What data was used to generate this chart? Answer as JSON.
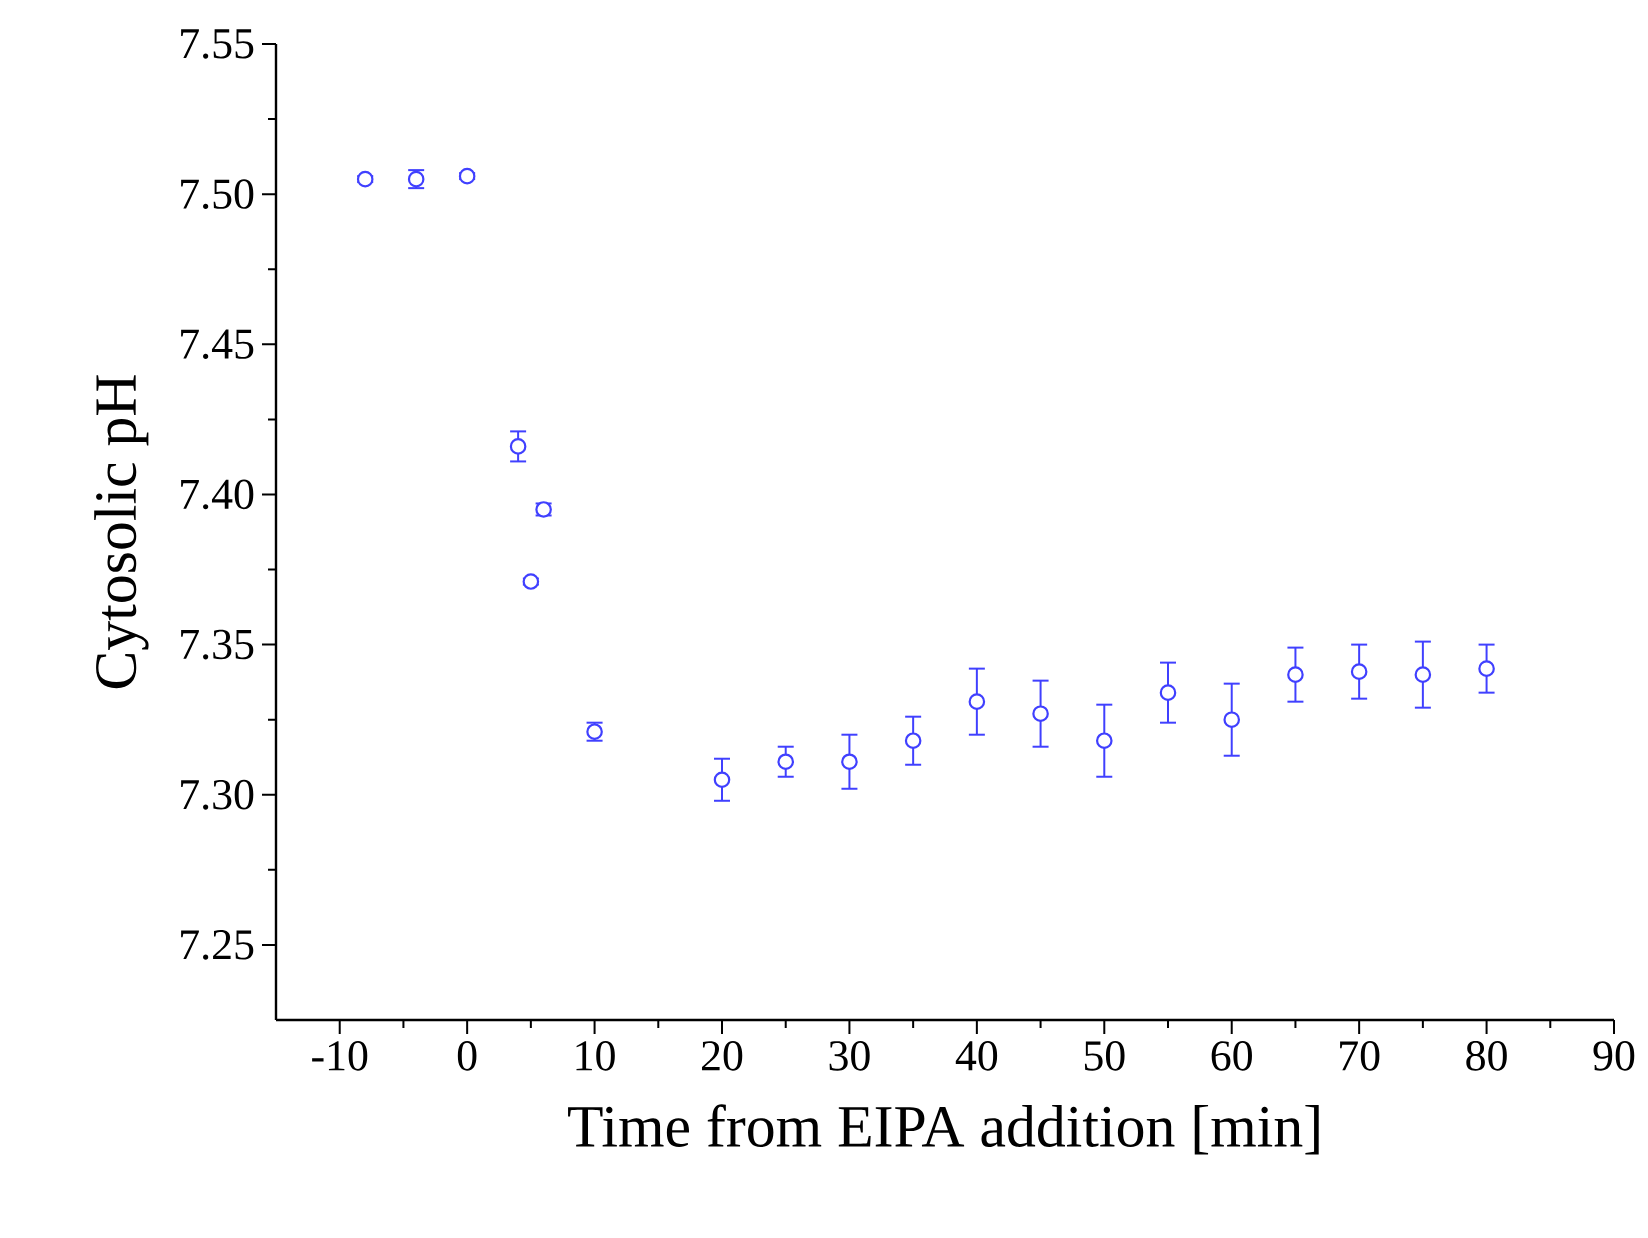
{
  "chart_data": {
    "type": "scatter",
    "xlabel": "Time from EIPA addition [min]",
    "ylabel": "Cytosolic pH",
    "x": [
      -8,
      -4,
      0,
      4,
      5,
      6,
      10,
      20,
      25,
      30,
      35,
      40,
      45,
      50,
      55,
      60,
      65,
      70,
      75,
      80
    ],
    "series": [
      {
        "color": "#4040ff",
        "values": [
          7.505,
          7.505,
          7.506,
          7.416,
          7.371,
          7.395,
          7.321,
          7.305,
          7.311,
          7.311,
          7.318,
          7.331,
          7.327,
          7.318,
          7.334,
          7.325,
          7.34,
          7.341,
          7.34,
          7.342
        ],
        "errors": [
          0.001,
          0.003,
          0.001,
          0.005,
          0.001,
          0.002,
          0.003,
          0.007,
          0.005,
          0.009,
          0.008,
          0.011,
          0.011,
          0.012,
          0.01,
          0.012,
          0.009,
          0.009,
          0.011,
          0.008
        ]
      }
    ],
    "xlim": [
      -15,
      90
    ],
    "ylim": [
      7.225,
      7.55
    ],
    "xticks": [
      -10,
      0,
      10,
      20,
      30,
      40,
      50,
      60,
      70,
      80,
      90
    ],
    "yticks": [
      {
        "value": 7.25,
        "label": "7.25"
      },
      {
        "value": 7.3,
        "label": "7.30"
      },
      {
        "value": 7.35,
        "label": "7.35"
      },
      {
        "value": 7.4,
        "label": "7.40"
      },
      {
        "value": 7.45,
        "label": "7.45"
      },
      {
        "value": 7.5,
        "label": "7.50"
      },
      {
        "value": 7.55,
        "label": "7.55"
      }
    ],
    "marker": "circle",
    "grid": false
  }
}
